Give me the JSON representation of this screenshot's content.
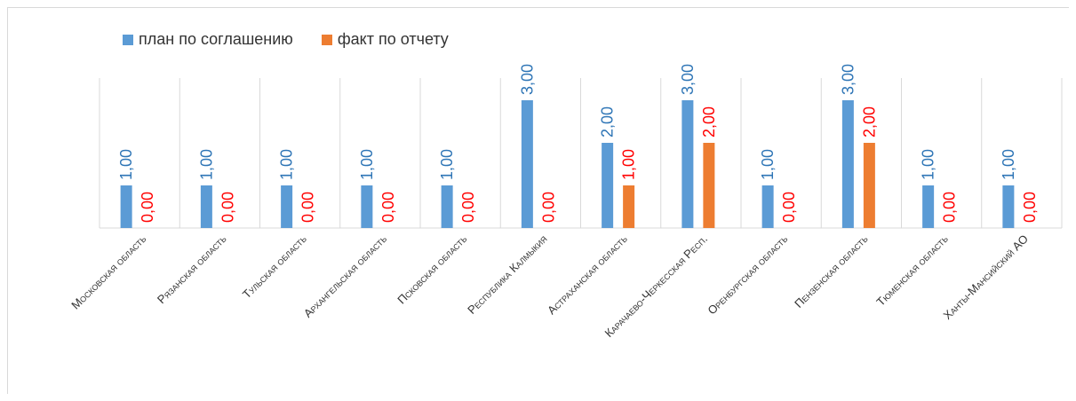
{
  "chart_data": {
    "type": "bar",
    "categories": [
      "Московская область",
      "Рязанская область",
      "Тульская область",
      "Архангельская область",
      "Псковская область",
      "Республика Калмыкия",
      "Астраханская область",
      "Карачаево-Черкесская Респ.",
      "Оренбургская область",
      "Пензенская область",
      "Тюменская область",
      "Ханты-Мансийский АО"
    ],
    "series": [
      {
        "name": "план по соглашению",
        "values": [
          1,
          1,
          1,
          1,
          1,
          3,
          2,
          3,
          1,
          3,
          1,
          1
        ],
        "labels": [
          "1,00",
          "1,00",
          "1,00",
          "1,00",
          "1,00",
          "3,00",
          "2,00",
          "3,00",
          "1,00",
          "3,00",
          "1,00",
          "1,00"
        ],
        "color": "#5b9bd5",
        "label_color": "#2e75b6"
      },
      {
        "name": "факт по отчету",
        "values": [
          0,
          0,
          0,
          0,
          0,
          0,
          1,
          2,
          0,
          2,
          0,
          0
        ],
        "labels": [
          "0,00",
          "0,00",
          "0,00",
          "0,00",
          "0,00",
          "0,00",
          "1,00",
          "2,00",
          "0,00",
          "2,00",
          "0,00",
          "0,00"
        ],
        "color": "#ed7d31",
        "label_color": "#ff0000"
      }
    ],
    "ylim": [
      0,
      3
    ],
    "grid": false,
    "legend": "top-left"
  }
}
